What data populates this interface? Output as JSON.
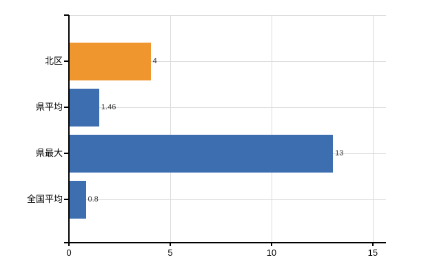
{
  "chart_data": {
    "type": "bar",
    "orientation": "horizontal",
    "title": "",
    "xlabel": "",
    "ylabel": "",
    "categories": [
      "北区",
      "県平均",
      "県最大",
      "全国平均"
    ],
    "values": [
      4,
      1.46,
      13,
      0.8
    ],
    "value_labels": [
      "4",
      "1.46",
      "13",
      "0.8"
    ],
    "bar_colors": [
      "#f0962e",
      "#3d6fb0",
      "#3d6fb0",
      "#3d6fb0"
    ],
    "xlim": [
      0,
      15.65
    ],
    "x_ticks": [
      0,
      5,
      10,
      15
    ],
    "x_tick_labels": [
      "0",
      "5",
      "10",
      "15"
    ],
    "grid": true,
    "legend": false,
    "colors": {
      "grid": "#dcdcdc",
      "axis": "#000000",
      "value_label": "#333333",
      "tick_label": "#000000",
      "category_label": "#000000",
      "background": "#ffffff"
    }
  }
}
